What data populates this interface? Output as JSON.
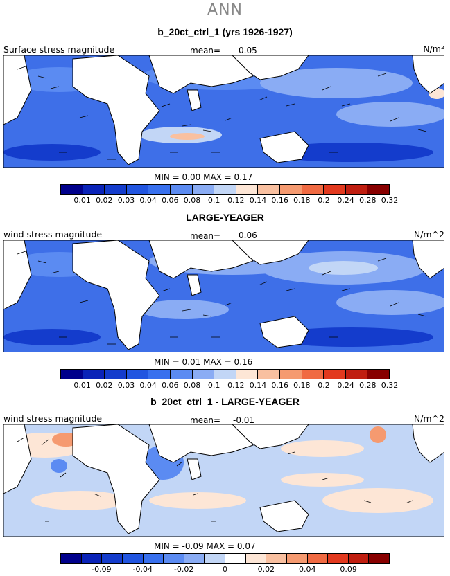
{
  "header": {
    "title": "ANN"
  },
  "panels": [
    {
      "title": "b_20ct_ctrl_1 (yrs 1926-1927)",
      "left_label": "Surface stress magnitude",
      "mean_label": "mean=",
      "mean_value": "0.05",
      "units": "N/m²",
      "min_max": "MIN =    0.00  MAX =    0.17",
      "palette": "positive",
      "colorbar_ticks": [
        "0.01",
        "0.02",
        "0.03",
        "0.04",
        "0.06",
        "0.08",
        "0.1",
        "0.12",
        "0.14",
        "0.16",
        "0.18",
        "0.2",
        "0.24",
        "0.28",
        "0.32"
      ]
    },
    {
      "title": "LARGE-YEAGER",
      "left_label": "wind stress magnitude",
      "mean_label": "mean=",
      "mean_value": "0.06",
      "units": "N/m^2",
      "min_max": "MIN =    0.01  MAX =    0.16",
      "palette": "positive",
      "colorbar_ticks": [
        "0.01",
        "0.02",
        "0.03",
        "0.04",
        "0.06",
        "0.08",
        "0.1",
        "0.12",
        "0.14",
        "0.16",
        "0.18",
        "0.2",
        "0.24",
        "0.28",
        "0.32"
      ]
    },
    {
      "title": "b_20ct_ctrl_1 - LARGE-YEAGER",
      "left_label": "wind stress magnitude",
      "mean_label": "mean=",
      "mean_value": "-0.01",
      "units": "N/m^2",
      "min_max": "MIN =   -0.09  MAX =    0.07",
      "palette": "difference",
      "colorbar_ticks": [
        "-0.09",
        "-0.04",
        "-0.02",
        "0",
        "0.02",
        "0.04",
        "0.09"
      ]
    }
  ],
  "colors": {
    "scale": [
      "#00008b",
      "#0a23b8",
      "#143ccc",
      "#2155e0",
      "#3870ee",
      "#5b8bf2",
      "#8aacf4",
      "#c2d6f6",
      "#fde6d6",
      "#f9c0a0",
      "#f59a70",
      "#f06a42",
      "#e2391e",
      "#c01e10",
      "#880000"
    ],
    "difference_scale": [
      "#00008b",
      "#0a23b8",
      "#143ccc",
      "#2155e0",
      "#3870ee",
      "#5b8bf2",
      "#8aacf4",
      "#c2d6f6",
      "#ffffff",
      "#fde6d6",
      "#f9c0a0",
      "#f59a70",
      "#f06a42",
      "#e2391e",
      "#c01e10",
      "#880000"
    ],
    "land": "#ffffff"
  }
}
